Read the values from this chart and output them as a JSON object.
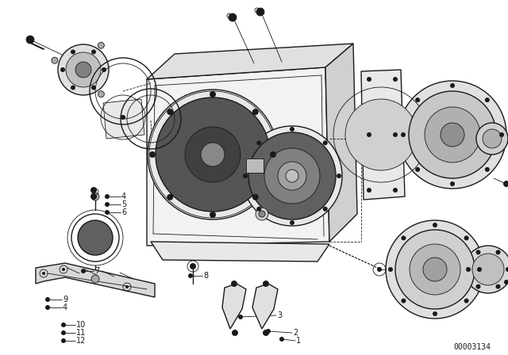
{
  "bg_color": "#ffffff",
  "line_color": "#1a1a1a",
  "diagram_id": "00003134",
  "fig_width": 6.4,
  "fig_height": 4.48,
  "dpi": 100,
  "note_fontsize": 7,
  "label_fontsize": 7,
  "lw_main": 1.0,
  "lw_thin": 0.6,
  "lw_thick": 1.4
}
